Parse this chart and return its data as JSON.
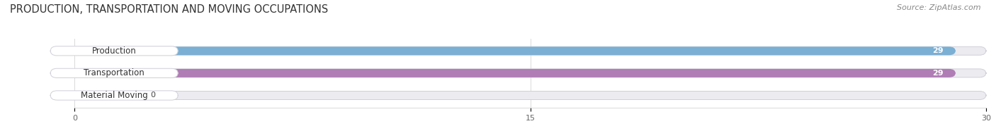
{
  "title": "PRODUCTION, TRANSPORTATION AND MOVING OCCUPATIONS",
  "source": "Source: ZipAtlas.com",
  "categories": [
    "Production",
    "Transportation",
    "Material Moving"
  ],
  "values": [
    29,
    29,
    0
  ],
  "bar_colors": [
    "#7bafd4",
    "#b07db5",
    "#7ececa"
  ],
  "bar_bg_color": "#ebebf0",
  "xlim": [
    0,
    30
  ],
  "xticks": [
    0,
    15,
    30
  ],
  "title_fontsize": 10.5,
  "label_fontsize": 8.5,
  "value_fontsize": 8,
  "source_fontsize": 8,
  "background_color": "#ffffff"
}
